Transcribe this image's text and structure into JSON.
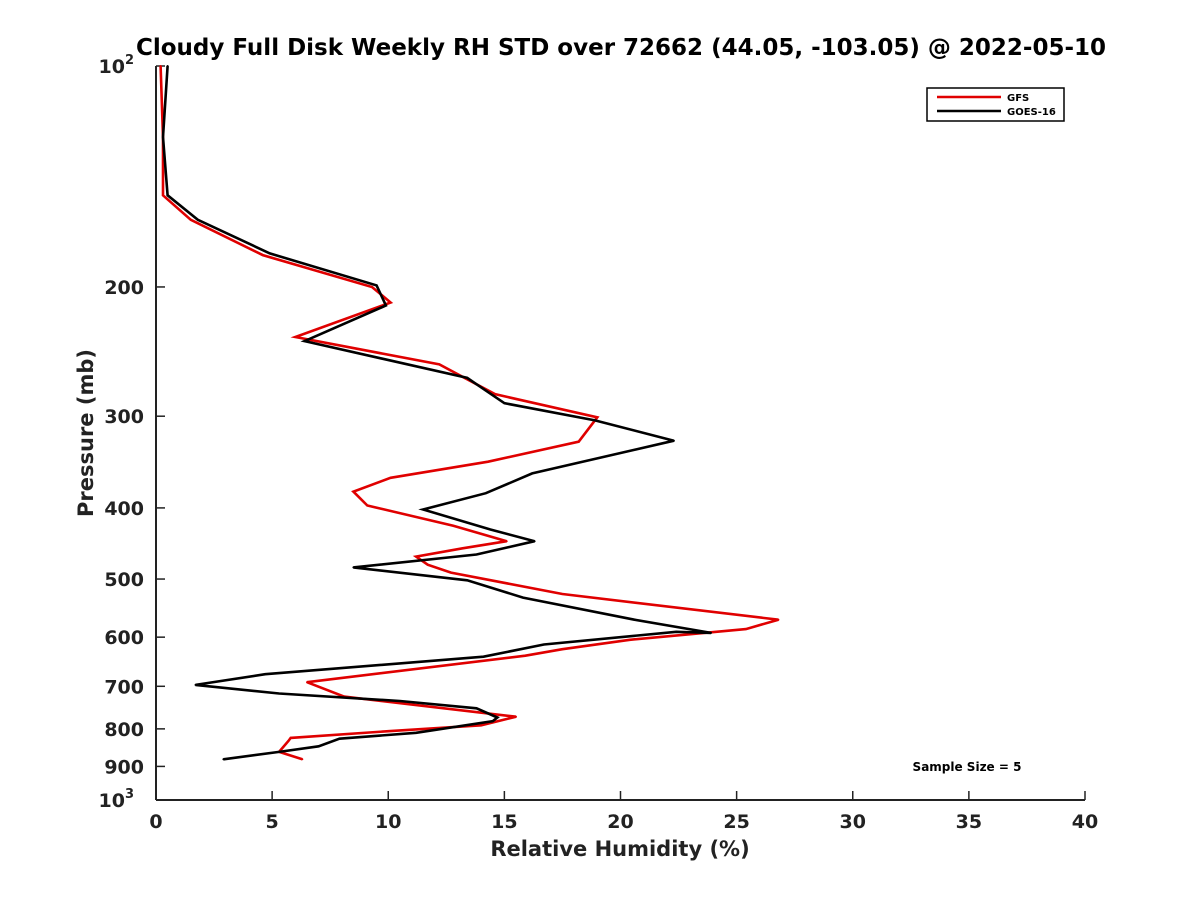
{
  "chart_data": {
    "type": "line",
    "title": "Cloudy Full Disk Weekly RH STD over 72662 (44.05, -103.05) @ 2022-05-10",
    "xlabel": "Relative Humidity (%)",
    "ylabel": "Pressure (mb)",
    "xlim": [
      0,
      40
    ],
    "ylim": [
      100,
      1000
    ],
    "yscale": "log",
    "y_reversed": true,
    "x_ticks": [
      0,
      5,
      10,
      15,
      20,
      25,
      30,
      35,
      40
    ],
    "y_ticks": [
      {
        "value": 100,
        "label": "10",
        "sup": "2"
      },
      {
        "value": 200,
        "label": "200"
      },
      {
        "value": 300,
        "label": "300"
      },
      {
        "value": 400,
        "label": "400"
      },
      {
        "value": 500,
        "label": "500"
      },
      {
        "value": 600,
        "label": "600"
      },
      {
        "value": 700,
        "label": "700"
      },
      {
        "value": 800,
        "label": "800"
      },
      {
        "value": 900,
        "label": "900"
      },
      {
        "value": 1000,
        "label": "10",
        "sup": "3"
      }
    ],
    "grid": false,
    "legend_position": "top-right",
    "series": [
      {
        "name": "GFS",
        "color": "#e00000",
        "points": [
          [
            0.2,
            100
          ],
          [
            0.3,
            125
          ],
          [
            0.3,
            150
          ],
          [
            1.5,
            162
          ],
          [
            4.6,
            181
          ],
          [
            9.3,
            200
          ],
          [
            10.1,
            210
          ],
          [
            6.0,
            234
          ],
          [
            12.2,
            255
          ],
          [
            14.6,
            280
          ],
          [
            19.0,
            301
          ],
          [
            18.2,
            325
          ],
          [
            14.3,
            346
          ],
          [
            10.1,
            364
          ],
          [
            8.5,
            380
          ],
          [
            9.1,
            397
          ],
          [
            12.8,
            423
          ],
          [
            15.1,
            444
          ],
          [
            13.2,
            454
          ],
          [
            11.2,
            466
          ],
          [
            11.7,
            478
          ],
          [
            12.7,
            490
          ],
          [
            17.5,
            524
          ],
          [
            26.8,
            568
          ],
          [
            25.4,
            585
          ],
          [
            20.4,
            605
          ],
          [
            17.5,
            623
          ],
          [
            15.9,
            636
          ],
          [
            6.5,
            691
          ],
          [
            8.1,
            723
          ],
          [
            15.5,
            770
          ],
          [
            14.0,
            791
          ],
          [
            10.0,
            806
          ],
          [
            5.8,
            823
          ],
          [
            5.7,
            831
          ],
          [
            5.3,
            860
          ],
          [
            6.3,
            880
          ]
        ]
      },
      {
        "name": "GOES-16",
        "color": "#000000",
        "points": [
          [
            0.5,
            100
          ],
          [
            0.3,
            125
          ],
          [
            0.5,
            150
          ],
          [
            1.8,
            162
          ],
          [
            4.9,
            180
          ],
          [
            9.5,
            199
          ],
          [
            9.9,
            212
          ],
          [
            6.4,
            237
          ],
          [
            13.4,
            266
          ],
          [
            15.0,
            288
          ],
          [
            18.9,
            304
          ],
          [
            22.3,
            324
          ],
          [
            16.2,
            359
          ],
          [
            14.2,
            382
          ],
          [
            11.5,
            402
          ],
          [
            14.4,
            428
          ],
          [
            16.3,
            444
          ],
          [
            13.8,
            463
          ],
          [
            8.5,
            482
          ],
          [
            13.4,
            502
          ],
          [
            15.8,
            530
          ],
          [
            20.6,
            568
          ],
          [
            23.9,
            592
          ],
          [
            22.4,
            590
          ],
          [
            16.7,
            614
          ],
          [
            14.1,
            638
          ],
          [
            4.7,
            674
          ],
          [
            1.7,
            697
          ],
          [
            5.3,
            716
          ],
          [
            10.5,
            733
          ],
          [
            13.8,
            750
          ],
          [
            14.7,
            772
          ],
          [
            14.5,
            781
          ],
          [
            11.2,
            810
          ],
          [
            7.9,
            825
          ],
          [
            7.0,
            845
          ],
          [
            5.3,
            860
          ],
          [
            2.9,
            880
          ]
        ]
      }
    ],
    "annotations": [
      "Sample Size = 5"
    ]
  }
}
